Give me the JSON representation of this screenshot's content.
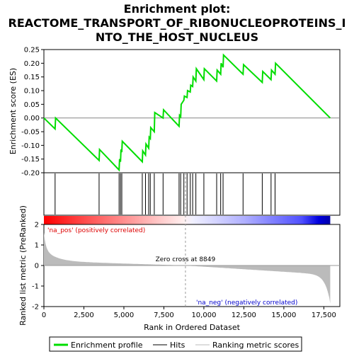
{
  "chart_data": {
    "type": "line",
    "title_lines": [
      "Enrichment plot:",
      "REACTOME_TRANSPORT_OF_RIBONUCLEOPROTEINS_I",
      "NTO_THE_HOST_NUCLEUS"
    ],
    "es_panel": {
      "ylabel": "Enrichment score (ES)",
      "ylim": [
        -0.2,
        0.25
      ],
      "yticks": [
        -0.2,
        -0.15,
        -0.1,
        -0.05,
        0.0,
        0.05,
        0.1,
        0.15,
        0.2,
        0.25
      ],
      "ytick_labels": [
        "-0.20",
        "-0.15",
        "-0.10",
        "-0.05",
        "0.00",
        "0.05",
        "0.10",
        "0.15",
        "0.20",
        "0.25"
      ],
      "series": [
        {
          "name": "Enrichment profile",
          "color": "#00dd00",
          "x": [
            0,
            700,
            730,
            3450,
            3480,
            4700,
            4730,
            4790,
            4820,
            4870,
            4900,
            6150,
            6180,
            6350,
            6380,
            6550,
            6580,
            6650,
            6680,
            6900,
            6930,
            7450,
            7480,
            8450,
            8480,
            8550,
            8580,
            8750,
            8780,
            8950,
            8980,
            9150,
            9180,
            9300,
            9330,
            9500,
            9530,
            10000,
            10030,
            10800,
            10830,
            11050,
            11080,
            11200,
            11230,
            12450,
            12480,
            13650,
            13680,
            14200,
            14230,
            14450,
            14480,
            17900
          ],
          "y": [
            0.0,
            -0.04,
            0.0,
            -0.155,
            -0.115,
            -0.19,
            -0.15,
            -0.16,
            -0.115,
            -0.125,
            -0.085,
            -0.16,
            -0.12,
            -0.135,
            -0.095,
            -0.11,
            -0.07,
            -0.075,
            -0.035,
            -0.05,
            0.02,
            0.0,
            0.03,
            -0.03,
            0.01,
            0.005,
            0.05,
            0.065,
            0.08,
            0.075,
            0.1,
            0.095,
            0.12,
            0.115,
            0.15,
            0.135,
            0.18,
            0.14,
            0.18,
            0.135,
            0.175,
            0.16,
            0.2,
            0.185,
            0.23,
            0.16,
            0.195,
            0.13,
            0.17,
            0.14,
            0.175,
            0.16,
            0.2,
            0.0
          ]
        }
      ]
    },
    "hits": [
      700,
      3450,
      4700,
      4790,
      4870,
      6150,
      6350,
      6550,
      6650,
      6900,
      7450,
      8450,
      8550,
      8750,
      8950,
      9150,
      9300,
      9500,
      10000,
      10800,
      11050,
      11200,
      12450,
      13650,
      14200,
      14450
    ],
    "rank_panel": {
      "ylabel": "Ranked list metric (PreRanked)",
      "ylim": [
        -2,
        2
      ],
      "yticks": [
        -2,
        -1,
        0,
        1,
        2
      ],
      "ytick_labels": [
        "-2",
        "-1",
        "0",
        "1",
        "2"
      ],
      "xlabel": "Rank in Ordered Dataset",
      "xlim": [
        0,
        18500
      ],
      "xticks": [
        0,
        2500,
        5000,
        7500,
        10000,
        12500,
        15000,
        17500
      ],
      "xtick_labels": [
        "0",
        "2,500",
        "5,000",
        "7,500",
        "10,000",
        "12,500",
        "15,000",
        "17,500"
      ],
      "zero_cross": 8849,
      "zero_cross_label": "Zero cross at 8849",
      "na_pos_label": "'na_pos' (positively correlated)",
      "na_neg_label": "'na_neg' (negatively correlated)",
      "metric_start": 1.6,
      "metric_end": -1.85,
      "n_genes": 17900
    },
    "legend": {
      "placement": "bottom",
      "items": [
        {
          "label": "Enrichment profile",
          "color": "#00dd00"
        },
        {
          "label": "Hits",
          "color": "#000000"
        },
        {
          "label": "Ranking metric scores",
          "color": "#bbbbbb"
        }
      ]
    }
  }
}
